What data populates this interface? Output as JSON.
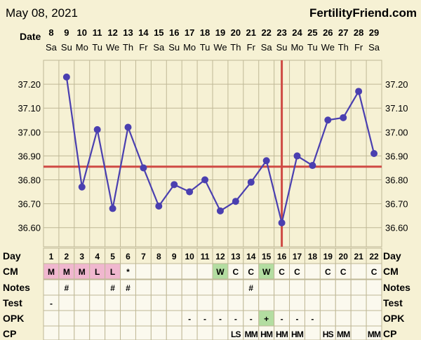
{
  "header": {
    "date": "May 08, 2021",
    "site": "FertilityFriend.com"
  },
  "labels": {
    "date_row": "Date",
    "day_left": "Day",
    "day_right": "Day",
    "cm_left": "CM",
    "cm_right": "CM",
    "notes_left": "Notes",
    "notes_right": "Notes",
    "test_left": "Test",
    "test_right": "Test",
    "opk_left": "OPK",
    "opk_right": "OPK",
    "cp_left": "CP",
    "cp_right": "CP"
  },
  "colors": {
    "background": "#f6f1d4",
    "grid": "#bfb896",
    "temperature_line": "#4a3fb0",
    "coverline": "#cf4a44",
    "ovulation_line": "#cf4a44",
    "menstruation_cell": "#f0b7cf",
    "fertile_cell": "#b3dda1"
  },
  "chart_data": {
    "type": "line",
    "dates": [
      "8",
      "9",
      "10",
      "11",
      "12",
      "13",
      "14",
      "15",
      "16",
      "17",
      "18",
      "19",
      "20",
      "21",
      "22",
      "23",
      "24",
      "25",
      "26",
      "27",
      "28",
      "29"
    ],
    "weekdays": [
      "Sa",
      "Su",
      "Mo",
      "Tu",
      "We",
      "Th",
      "Fr",
      "Sa",
      "Su",
      "Mo",
      "Tu",
      "We",
      "Th",
      "Fr",
      "Sa",
      "Su",
      "Mo",
      "Tu",
      "We",
      "Th",
      "Fr",
      "Sa"
    ],
    "cycle_days": [
      "1",
      "2",
      "3",
      "4",
      "5",
      "6",
      "7",
      "8",
      "9",
      "10",
      "11",
      "12",
      "13",
      "14",
      "15",
      "16",
      "17",
      "18",
      "19",
      "20",
      "21",
      "22"
    ],
    "temperatures": [
      null,
      37.23,
      36.77,
      37.01,
      36.68,
      37.02,
      36.85,
      36.69,
      36.78,
      36.75,
      36.8,
      36.67,
      36.71,
      36.79,
      36.88,
      36.62,
      36.9,
      36.86,
      37.05,
      37.06,
      37.17,
      36.91
    ],
    "y_ticks": [
      "37.20",
      "37.10",
      "37.00",
      "36.90",
      "36.80",
      "36.70",
      "36.60"
    ],
    "ylim": [
      36.52,
      37.3
    ],
    "coverline": 36.855,
    "ovulation_day_index": 15,
    "grid": true
  },
  "rows": {
    "cm": [
      "M",
      "M",
      "M",
      "L",
      "L",
      "*",
      "",
      "",
      "",
      "",
      "",
      "W",
      "C",
      "C",
      "W",
      "C",
      "C",
      "",
      "C",
      "C",
      "",
      "C"
    ],
    "notes": [
      "",
      "#",
      "",
      "",
      "#",
      "#",
      "",
      "",
      "",
      "",
      "",
      "",
      "",
      "#",
      "",
      "",
      "",
      "",
      "",
      "",
      "",
      ""
    ],
    "test": [
      "-",
      "",
      "",
      "",
      "",
      "",
      "",
      "",
      "",
      "",
      "",
      "",
      "",
      "",
      "",
      "",
      "",
      "",
      "",
      "",
      "",
      ""
    ],
    "opk": [
      "",
      "",
      "",
      "",
      "",
      "",
      "",
      "",
      "",
      "-",
      "-",
      "-",
      "-",
      "-",
      "+",
      "-",
      "-",
      "-",
      "",
      "",
      "",
      ""
    ],
    "cp": [
      "",
      "",
      "",
      "",
      "",
      "",
      "",
      "",
      "",
      "",
      "",
      "",
      "LS",
      "MM",
      "HM",
      "HM",
      "HM",
      "",
      "HS",
      "MM",
      "",
      "MM"
    ]
  }
}
